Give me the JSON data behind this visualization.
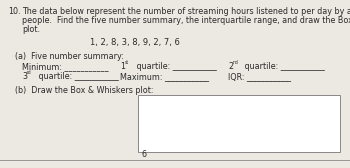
{
  "title_number": "10.",
  "title_text1": "The data below represent the number of streaming hours listened to per day by a sample of 9",
  "title_text2": "people.  Find the five number summary, the interquartile range, and draw the Box and Whiskers",
  "title_text3": "plot.",
  "data_line": "1, 2, 8, 3, 8, 9, 2, 7, 6",
  "part_a": "(a)  Five number summary:",
  "row1_col1": "Minimum: ___________",
  "row1_col2_pre": "1",
  "row1_col2_sup": "st",
  "row1_col2_post": " quartile: ___________",
  "row1_col3_pre": "2",
  "row1_col3_sup": "nd",
  "row1_col3_post": " quartile: ___________",
  "row2_col1_pre": "3",
  "row2_col1_sup": "rd",
  "row2_col1_post": " quartile: ___________",
  "row2_col2": "Maximum: ___________",
  "row2_col3": "IQR: ___________",
  "part_b": "(b)  Draw the Box & Whiskers plot:",
  "tick_label": "6",
  "bg_color": "#ece9e3",
  "text_color": "#2a2a2a",
  "box_edge_color": "#888888",
  "line_color": "#888888",
  "font_size": 5.8,
  "font_family": "DejaVu Sans"
}
